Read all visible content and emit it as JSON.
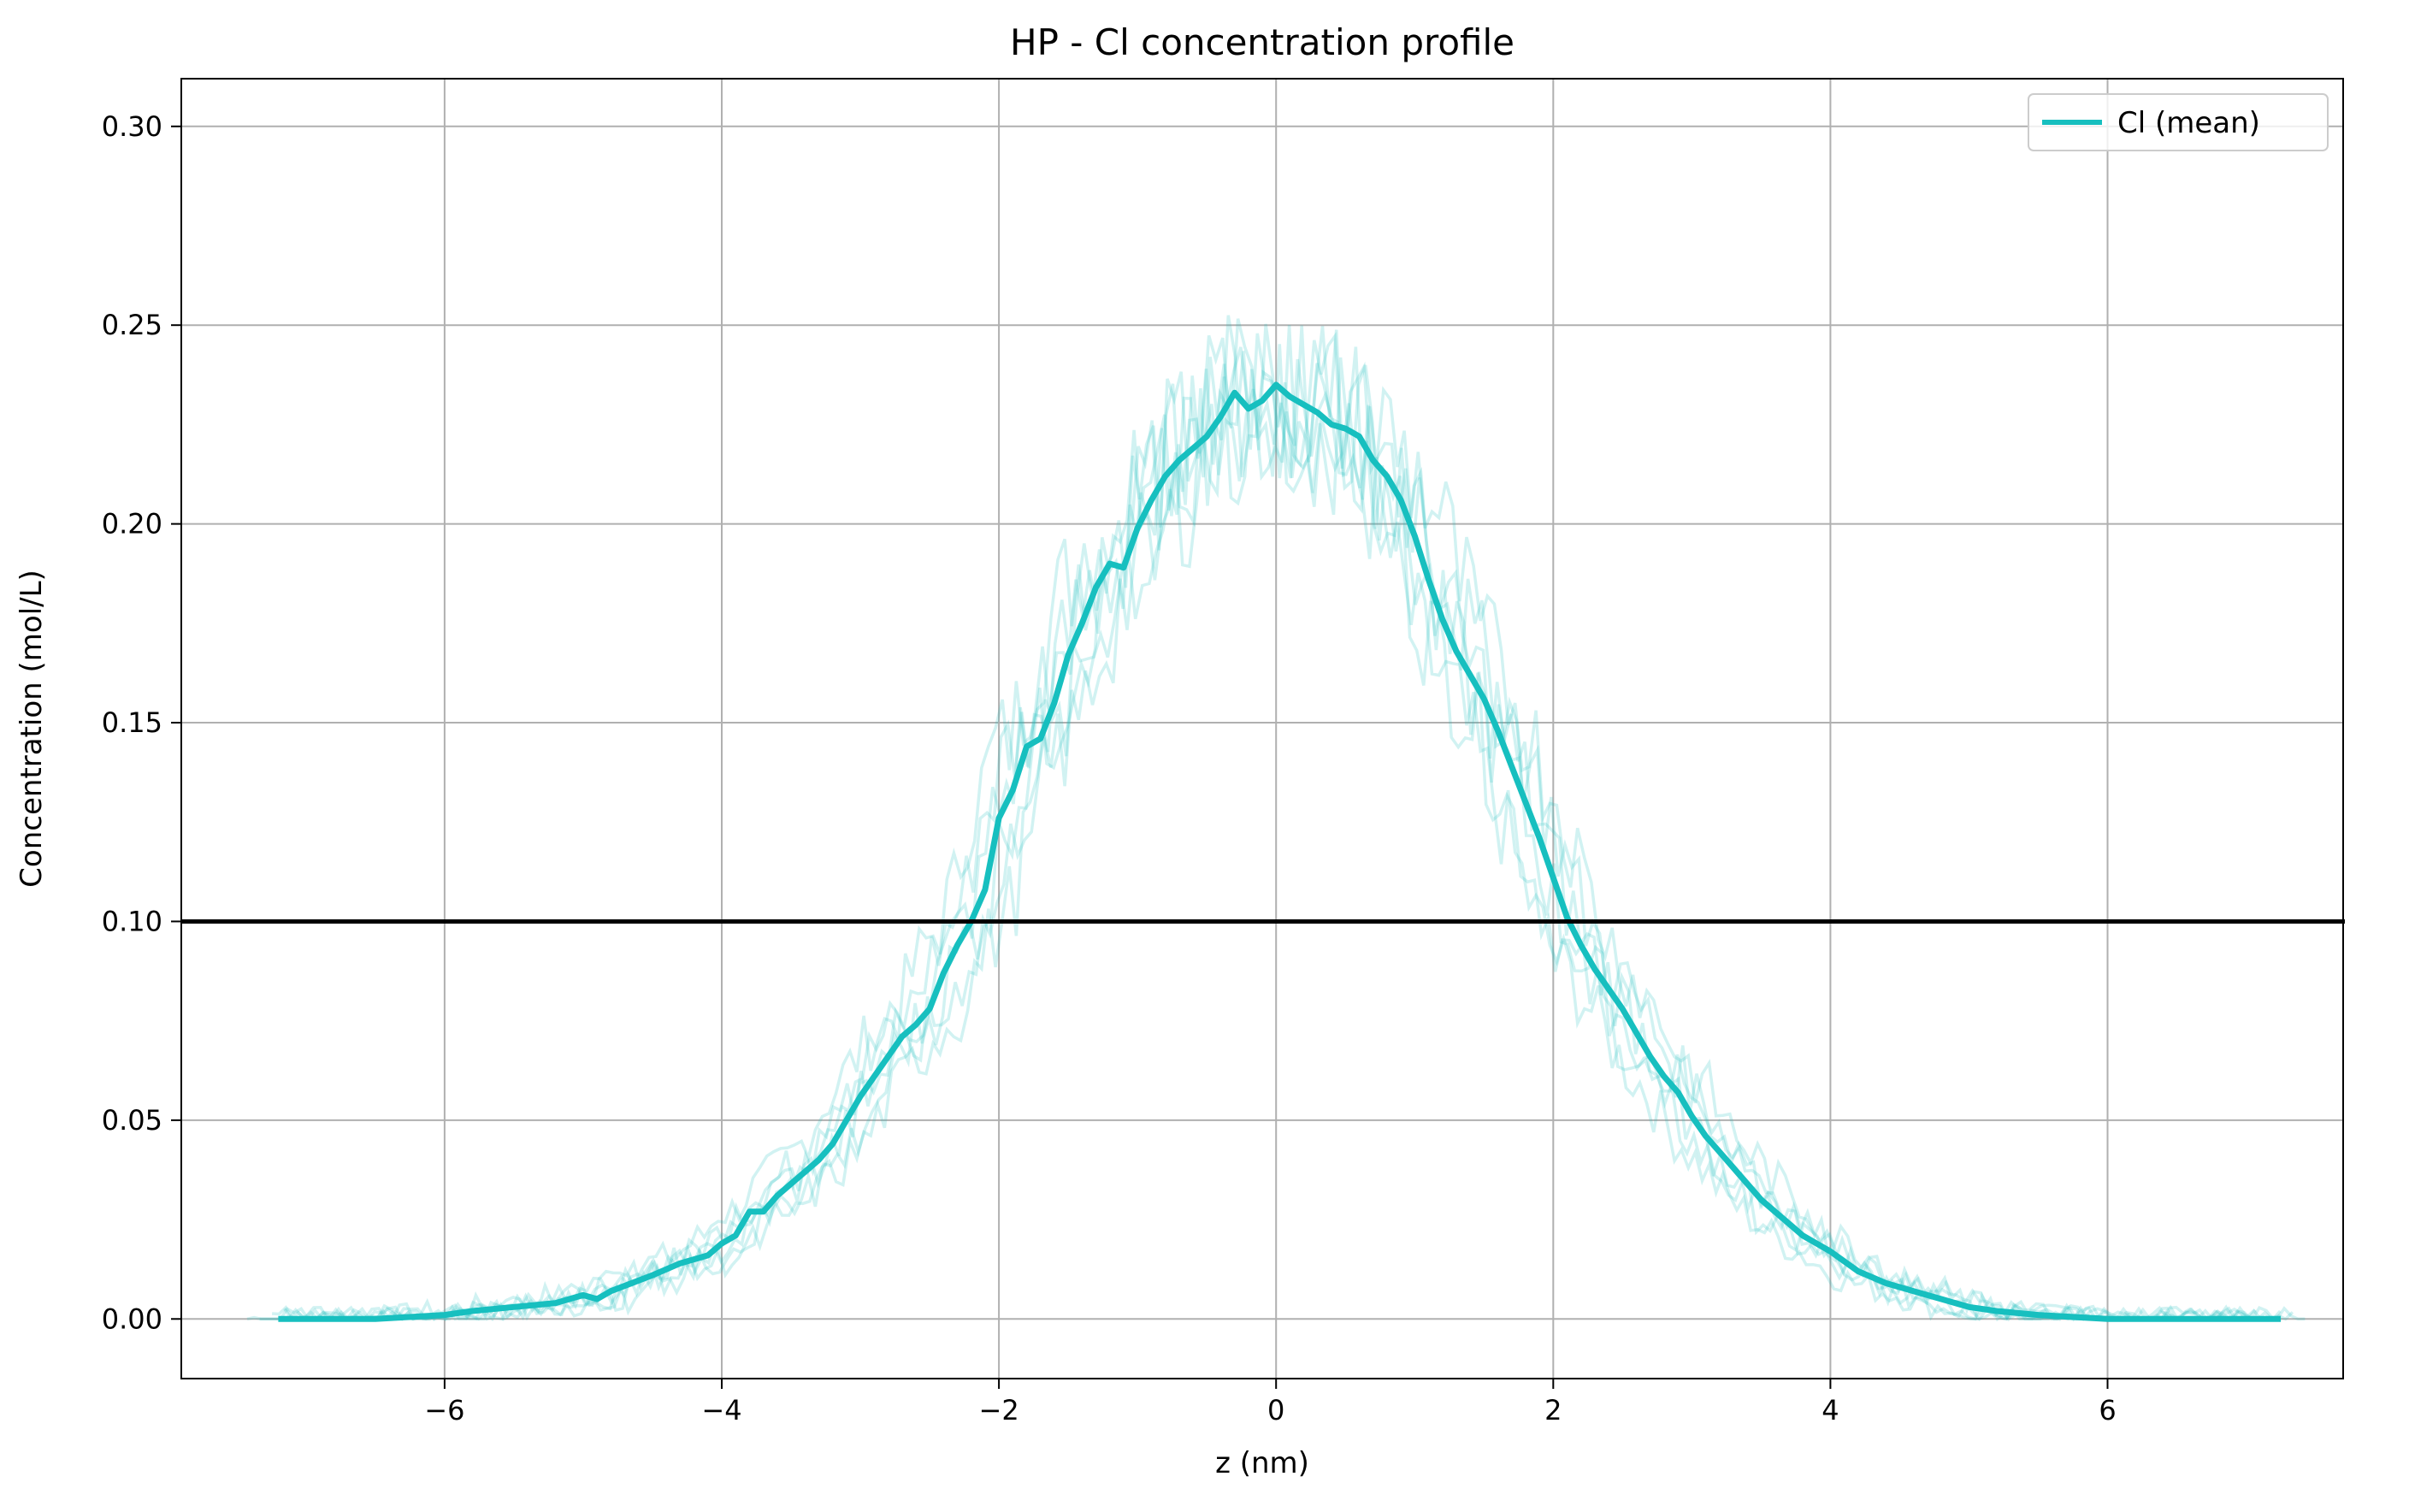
{
  "chart_data": {
    "type": "line",
    "title": "HP - Cl concentration profile",
    "xlabel": "z (nm)",
    "ylabel": "Concentration (mol/L)",
    "xlim": [
      -7.9,
      7.7
    ],
    "ylim": [
      -0.015,
      0.312
    ],
    "xticks": [
      -6,
      -4,
      -2,
      0,
      2,
      4,
      6
    ],
    "xtick_labels": [
      "−6",
      "−4",
      "−2",
      "0",
      "2",
      "4",
      "6"
    ],
    "yticks": [
      0.0,
      0.05,
      0.1,
      0.15,
      0.2,
      0.25,
      0.3
    ],
    "ytick_labels": [
      "0.00",
      "0.05",
      "0.10",
      "0.15",
      "0.20",
      "0.25",
      "0.30"
    ],
    "grid": true,
    "legend_position": "top-right",
    "colors": {
      "series": "#17bfbf",
      "reference": "#000000",
      "grid": "#b0b0b0"
    },
    "reference_line": {
      "y": 0.1
    },
    "series": [
      {
        "name": "Cl (mean)",
        "x": [
          -7.2,
          -7.0,
          -6.5,
          -6.0,
          -5.8,
          -5.5,
          -5.2,
          -5.0,
          -4.9,
          -4.8,
          -4.5,
          -4.3,
          -4.1,
          -4.0,
          -3.9,
          -3.8,
          -3.7,
          -3.6,
          -3.5,
          -3.4,
          -3.3,
          -3.2,
          -3.1,
          -3.0,
          -2.9,
          -2.8,
          -2.7,
          -2.6,
          -2.5,
          -2.4,
          -2.3,
          -2.2,
          -2.1,
          -2.0,
          -1.9,
          -1.8,
          -1.7,
          -1.6,
          -1.5,
          -1.4,
          -1.3,
          -1.2,
          -1.1,
          -1.0,
          -0.9,
          -0.8,
          -0.7,
          -0.6,
          -0.5,
          -0.4,
          -0.3,
          -0.2,
          -0.1,
          0.0,
          0.1,
          0.2,
          0.3,
          0.4,
          0.5,
          0.6,
          0.7,
          0.8,
          0.9,
          1.0,
          1.1,
          1.2,
          1.3,
          1.4,
          1.5,
          1.6,
          1.7,
          1.8,
          1.9,
          2.0,
          2.1,
          2.2,
          2.3,
          2.4,
          2.5,
          2.6,
          2.7,
          2.8,
          2.9,
          3.0,
          3.1,
          3.2,
          3.3,
          3.4,
          3.5,
          3.6,
          3.7,
          3.8,
          3.9,
          4.0,
          4.2,
          4.4,
          4.6,
          4.8,
          5.0,
          5.2,
          5.5,
          6.0,
          6.5,
          7.0,
          7.25
        ],
        "values": [
          0.0,
          0.0,
          0.0,
          0.001,
          0.002,
          0.003,
          0.004,
          0.006,
          0.005,
          0.007,
          0.011,
          0.014,
          0.016,
          0.019,
          0.021,
          0.027,
          0.027,
          0.031,
          0.034,
          0.037,
          0.04,
          0.044,
          0.05,
          0.056,
          0.061,
          0.066,
          0.071,
          0.074,
          0.078,
          0.087,
          0.094,
          0.1,
          0.108,
          0.126,
          0.133,
          0.144,
          0.146,
          0.155,
          0.167,
          0.175,
          0.184,
          0.19,
          0.189,
          0.199,
          0.206,
          0.212,
          0.216,
          0.219,
          0.222,
          0.227,
          0.233,
          0.229,
          0.231,
          0.235,
          0.232,
          0.23,
          0.228,
          0.225,
          0.224,
          0.222,
          0.216,
          0.212,
          0.206,
          0.197,
          0.186,
          0.176,
          0.168,
          0.162,
          0.156,
          0.148,
          0.139,
          0.13,
          0.121,
          0.111,
          0.101,
          0.094,
          0.088,
          0.083,
          0.078,
          0.072,
          0.066,
          0.061,
          0.057,
          0.051,
          0.046,
          0.042,
          0.038,
          0.034,
          0.03,
          0.027,
          0.024,
          0.021,
          0.019,
          0.017,
          0.012,
          0.009,
          0.007,
          0.005,
          0.003,
          0.002,
          0.001,
          0.0,
          0.0,
          0.0,
          0.0
        ]
      }
    ]
  }
}
